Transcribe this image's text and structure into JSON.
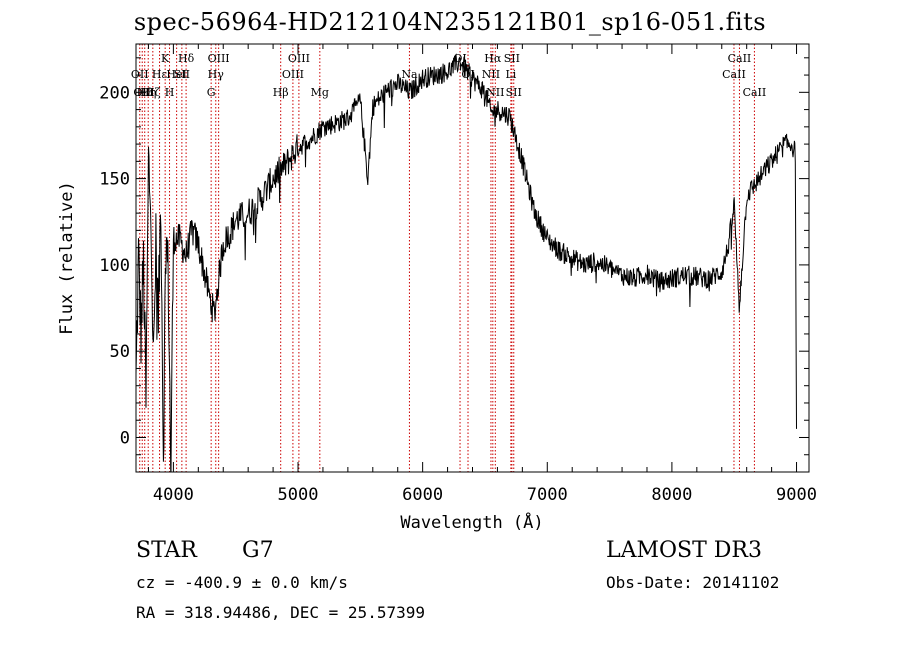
{
  "page": {
    "title": "spec-56964-HD212104N235121B01_sp16-051.fits",
    "object_class": "STAR",
    "subclass": "G7",
    "survey": "LAMOST DR3",
    "cz_text": "cz = -400.9 ± 0.0 km/s",
    "obs_date_text": "Obs-Date: 20141102",
    "coords_text": "RA = 318.94486, DEC =  25.57399"
  },
  "chart_data": {
    "type": "line",
    "title": "spec-56964-HD212104N235121B01_sp16-051.fits",
    "xlabel": "Wavelength (Å)",
    "ylabel": "Flux (relative)",
    "xlim": [
      3700,
      9100
    ],
    "ylim": [
      -20,
      228
    ],
    "x_ticks": [
      4000,
      5000,
      6000,
      7000,
      8000,
      9000
    ],
    "y_ticks": [
      0,
      50,
      100,
      150,
      200
    ],
    "line_color": "#000000",
    "marker_color": "#cc0000",
    "series": [
      {
        "x": [
          3700,
          3720,
          3740,
          3760,
          3780,
          3800,
          3820,
          3840,
          3860,
          3880,
          3900,
          3920,
          3940,
          3960,
          3980,
          4000,
          4050,
          4100,
          4150,
          4200,
          4250,
          4300,
          4330,
          4360,
          4400,
          4450,
          4500,
          4600,
          4700,
          4800,
          4900,
          5000,
          5100,
          5200,
          5300,
          5400,
          5500,
          5560,
          5600,
          5700,
          5800,
          5900,
          6000,
          6100,
          6200,
          6300,
          6400,
          6500,
          6550,
          6600,
          6700,
          6800,
          6900,
          7000,
          7100,
          7200,
          7300,
          7400,
          7500,
          7600,
          7700,
          7800,
          7900,
          8000,
          8100,
          8200,
          8300,
          8400,
          8450,
          8500,
          8540,
          8600,
          8700,
          8800,
          8900,
          8960,
          8990,
          9000
        ],
        "y": [
          30,
          105,
          60,
          100,
          20,
          160,
          130,
          40,
          110,
          70,
          140,
          -10,
          120,
          90,
          -20,
          115,
          115,
          105,
          120,
          112,
          95,
          78,
          72,
          90,
          112,
          118,
          126,
          130,
          138,
          150,
          158,
          168,
          173,
          180,
          182,
          185,
          195,
          150,
          192,
          200,
          205,
          200,
          208,
          210,
          212,
          218,
          208,
          200,
          188,
          190,
          186,
          160,
          130,
          115,
          108,
          104,
          100,
          102,
          98,
          94,
          92,
          95,
          90,
          92,
          94,
          93,
          92,
          96,
          110,
          135,
          75,
          140,
          150,
          160,
          170,
          170,
          165,
          5
        ]
      }
    ],
    "lines": [
      {
        "wave": 3730,
        "label": "OII",
        "row": 2
      },
      {
        "wave": 3750,
        "label": "OII",
        "row": 3
      },
      {
        "wave": 3770,
        "label": "Hθ",
        "row": 3
      },
      {
        "wave": 3798,
        "label": "Hη",
        "row": 3
      },
      {
        "wave": 3835,
        "label": "Hζ",
        "row": 3
      },
      {
        "wave": 3889,
        "label": "Hε",
        "row": 2
      },
      {
        "wave": 3934,
        "label": "K",
        "row": 1
      },
      {
        "wave": 3969,
        "label": "H",
        "row": 3
      },
      {
        "wave": 4026,
        "label": "HeI",
        "row": 2
      },
      {
        "wave": 4068,
        "label": "SII",
        "row": 2
      },
      {
        "wave": 4102,
        "label": "Hδ",
        "row": 1
      },
      {
        "wave": 4303,
        "label": "G",
        "row": 3
      },
      {
        "wave": 4340,
        "label": "Hγ",
        "row": 2
      },
      {
        "wave": 4363,
        "label": "OIII",
        "row": 1
      },
      {
        "wave": 4861,
        "label": "Hβ",
        "row": 3
      },
      {
        "wave": 4959,
        "label": "OIII",
        "row": 2
      },
      {
        "wave": 5007,
        "label": "OIII",
        "row": 1
      },
      {
        "wave": 5175,
        "label": "Mg",
        "row": 3
      },
      {
        "wave": 5894,
        "label": "Na",
        "row": 2
      },
      {
        "wave": 6300,
        "label": "OI",
        "row": 1
      },
      {
        "wave": 6364,
        "label": "OI",
        "row": 2
      },
      {
        "wave": 6548,
        "label": "NII",
        "row": 2
      },
      {
        "wave": 6563,
        "label": "Hα",
        "row": 1
      },
      {
        "wave": 6583,
        "label": "NII",
        "row": 3
      },
      {
        "wave": 6708,
        "label": "Li",
        "row": 2
      },
      {
        "wave": 6716,
        "label": "SII",
        "row": 1
      },
      {
        "wave": 6731,
        "label": "SII",
        "row": 3
      },
      {
        "wave": 8498,
        "label": "CaII",
        "row": 2
      },
      {
        "wave": 8542,
        "label": "CaII",
        "row": 1
      },
      {
        "wave": 8662,
        "label": "CaII",
        "row": 3
      }
    ]
  }
}
